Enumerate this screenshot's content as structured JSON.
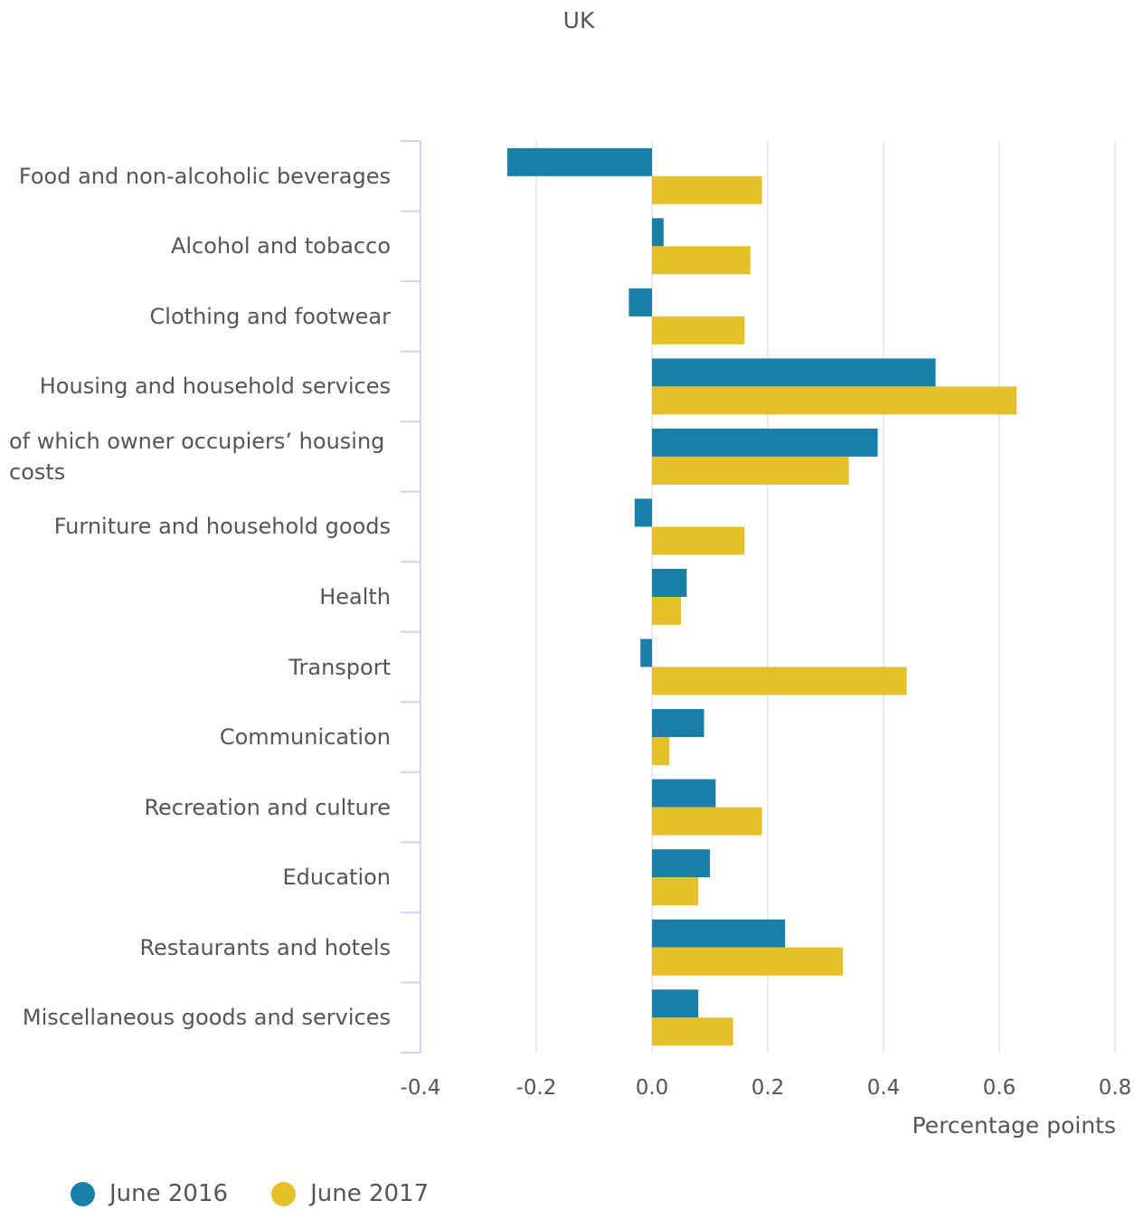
{
  "subtitle": "UK",
  "colors": {
    "june_2016": "#1a7fa8",
    "june_2017": "#e6c029",
    "grid": "#e3e3e3",
    "axis": "#ccd6eb"
  },
  "chart_data": {
    "type": "bar",
    "orientation": "horizontal",
    "categories": [
      "Food and non-alcoholic beverages",
      "Alcohol and tobacco",
      "Clothing and footwear",
      "Housing and household services",
      "of which owner occupiers’ housing costs",
      "Furniture and household goods",
      "Health",
      "Transport",
      "Communication",
      "Recreation and culture",
      "Education",
      "Restaurants and hotels",
      "Miscellaneous goods and services"
    ],
    "series": [
      {
        "name": "June 2016",
        "values": [
          -0.25,
          0.02,
          -0.04,
          0.49,
          0.39,
          -0.03,
          0.06,
          -0.02,
          0.09,
          0.11,
          0.1,
          0.23,
          0.08
        ]
      },
      {
        "name": "June 2017",
        "values": [
          0.19,
          0.17,
          0.16,
          0.63,
          0.34,
          0.16,
          0.05,
          0.44,
          0.03,
          0.19,
          0.08,
          0.33,
          0.14
        ]
      }
    ],
    "xlabel": "Percentage points",
    "xlim": [
      -0.4,
      0.8
    ],
    "xticks": [
      "-0.4",
      "-0.2",
      "0.0",
      "0.2",
      "0.4",
      "0.6",
      "0.8"
    ],
    "grid": true,
    "legend_position": "bottom-left"
  }
}
